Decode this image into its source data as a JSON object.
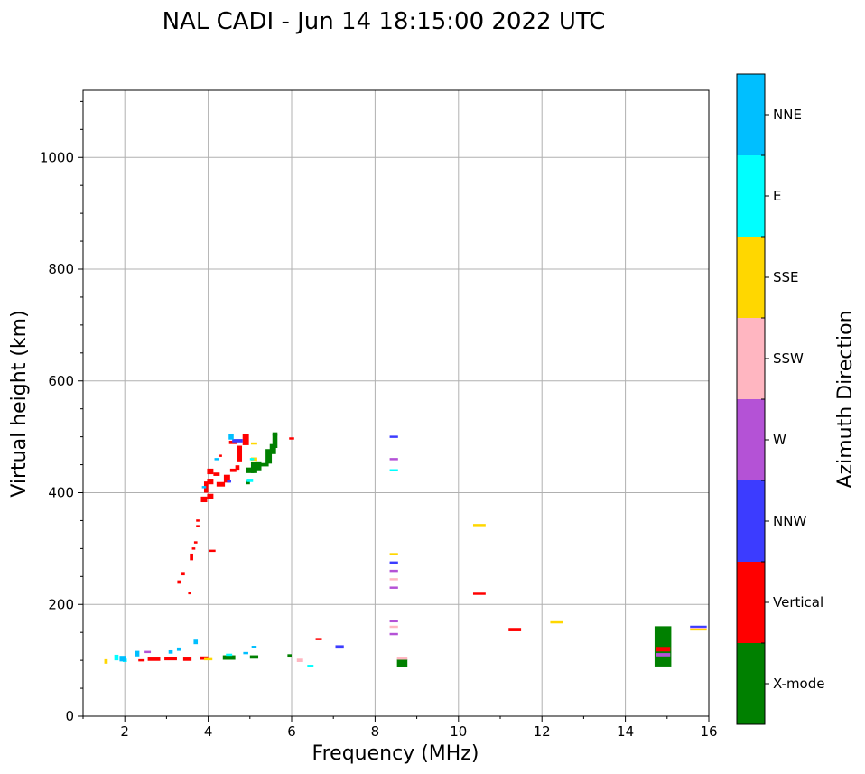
{
  "chart_data": {
    "type": "scatter",
    "title": "NAL CADI - Jun 14 18:15:00 2022 UTC",
    "xlabel": "Frequency (MHz)",
    "ylabel": "Virtual height (km)",
    "xlim": [
      1,
      16
    ],
    "ylim": [
      0,
      1120
    ],
    "xticks": [
      2,
      4,
      6,
      8,
      10,
      12,
      14,
      16
    ],
    "yticks": [
      0,
      200,
      400,
      600,
      800,
      1000
    ],
    "grid": true,
    "colorbar": {
      "label": "Azimuth Direction",
      "categories": [
        {
          "name": "X-mode",
          "color": "#008000"
        },
        {
          "name": "Vertical",
          "color": "#ff0000"
        },
        {
          "name": "NNW",
          "color": "#3c3cff"
        },
        {
          "name": "W",
          "color": "#b452d6"
        },
        {
          "name": "SSW",
          "color": "#ffb6c1"
        },
        {
          "name": "SSE",
          "color": "#ffd700"
        },
        {
          "name": "E",
          "color": "#00ffff"
        },
        {
          "name": "NNE",
          "color": "#00bfff"
        }
      ]
    },
    "series": [
      {
        "name": "X-mode",
        "points": [
          [
            4.5,
            105,
            0.3,
            8
          ],
          [
            5.1,
            106,
            0.2,
            6
          ],
          [
            5.95,
            108,
            0.1,
            6
          ],
          [
            8.65,
            95,
            0.25,
            14
          ],
          [
            5.0,
            440,
            0.2,
            10
          ],
          [
            5.1,
            445,
            0.15,
            20
          ],
          [
            5.2,
            448,
            0.15,
            16
          ],
          [
            5.35,
            450,
            0.2,
            6
          ],
          [
            5.45,
            465,
            0.15,
            26
          ],
          [
            5.55,
            478,
            0.15,
            18
          ],
          [
            5.6,
            492,
            0.12,
            24
          ],
          [
            5.6,
            505,
            0.12,
            6
          ],
          [
            4.95,
            418,
            0.1,
            6
          ],
          [
            14.9,
            125,
            0.4,
            72
          ]
        ]
      },
      {
        "name": "Vertical",
        "points": [
          [
            2.7,
            102,
            0.3,
            6
          ],
          [
            3.1,
            103,
            0.3,
            6
          ],
          [
            3.5,
            102,
            0.2,
            6
          ],
          [
            3.9,
            104,
            0.2,
            6
          ],
          [
            2.4,
            100,
            0.15,
            4
          ],
          [
            3.3,
            240,
            0.08,
            6
          ],
          [
            3.4,
            255,
            0.08,
            6
          ],
          [
            3.55,
            220,
            0.06,
            4
          ],
          [
            3.6,
            285,
            0.08,
            12
          ],
          [
            3.65,
            300,
            0.08,
            4
          ],
          [
            3.7,
            311,
            0.08,
            4
          ],
          [
            3.75,
            340,
            0.08,
            4
          ],
          [
            3.75,
            350,
            0.08,
            4
          ],
          [
            3.9,
            388,
            0.15,
            10
          ],
          [
            4.05,
            393,
            0.15,
            10
          ],
          [
            3.95,
            410,
            0.1,
            20
          ],
          [
            4.05,
            420,
            0.15,
            10
          ],
          [
            4.05,
            438,
            0.15,
            10
          ],
          [
            4.2,
            433,
            0.15,
            6
          ],
          [
            4.3,
            415,
            0.2,
            8
          ],
          [
            4.45,
            425,
            0.15,
            14
          ],
          [
            4.6,
            440,
            0.15,
            6
          ],
          [
            4.7,
            445,
            0.1,
            8
          ],
          [
            4.75,
            470,
            0.12,
            28
          ],
          [
            4.6,
            490,
            0.2,
            6
          ],
          [
            4.9,
            495,
            0.15,
            20
          ],
          [
            4.3,
            466,
            0.06,
            4
          ],
          [
            4.1,
            296,
            0.15,
            4
          ],
          [
            6.0,
            497,
            0.12,
            4
          ],
          [
            6.65,
            138,
            0.15,
            4
          ],
          [
            10.5,
            219,
            0.3,
            4
          ],
          [
            11.35,
            155,
            0.3,
            6
          ],
          [
            14.9,
            120,
            0.35,
            8
          ]
        ]
      },
      {
        "name": "NNW",
        "points": [
          [
            8.45,
            500,
            0.2,
            4
          ],
          [
            8.45,
            275,
            0.2,
            4
          ],
          [
            7.15,
            124,
            0.2,
            6
          ],
          [
            4.7,
            493,
            0.25,
            6
          ],
          [
            4.5,
            420,
            0.1,
            4
          ],
          [
            15.75,
            160,
            0.4,
            4
          ]
        ]
      },
      {
        "name": "W",
        "points": [
          [
            8.45,
            460,
            0.2,
            4
          ],
          [
            8.45,
            260,
            0.2,
            4
          ],
          [
            8.45,
            230,
            0.2,
            4
          ],
          [
            8.45,
            170,
            0.2,
            4
          ],
          [
            8.45,
            147,
            0.2,
            4
          ],
          [
            2.55,
            115,
            0.15,
            4
          ],
          [
            14.9,
            110,
            0.35,
            6
          ]
        ]
      },
      {
        "name": "SSW",
        "points": [
          [
            8.45,
            245,
            0.2,
            4
          ],
          [
            8.45,
            160,
            0.2,
            4
          ],
          [
            6.2,
            100,
            0.15,
            6
          ],
          [
            8.65,
            103,
            0.25,
            4
          ],
          [
            15.75,
            157,
            0.4,
            3
          ]
        ]
      },
      {
        "name": "SSE",
        "points": [
          [
            8.45,
            290,
            0.2,
            4
          ],
          [
            10.5,
            342,
            0.3,
            4
          ],
          [
            12.35,
            168,
            0.3,
            4
          ],
          [
            1.55,
            98,
            0.08,
            8
          ],
          [
            4.0,
            102,
            0.2,
            4
          ],
          [
            5.1,
            488,
            0.15,
            4
          ],
          [
            5.1,
            460,
            0.15,
            6
          ],
          [
            15.75,
            155,
            0.4,
            3
          ]
        ]
      },
      {
        "name": "E",
        "points": [
          [
            8.45,
            440,
            0.2,
            4
          ],
          [
            6.45,
            90,
            0.15,
            4
          ],
          [
            1.8,
            105,
            0.1,
            10
          ],
          [
            2.0,
            100,
            0.1,
            6
          ],
          [
            5.0,
            422,
            0.15,
            6
          ],
          [
            5.05,
            460,
            0.1,
            4
          ],
          [
            4.5,
            110,
            0.15,
            4
          ]
        ]
      },
      {
        "name": "NNE",
        "points": [
          [
            3.7,
            133,
            0.1,
            8
          ],
          [
            4.55,
            500,
            0.12,
            10
          ],
          [
            4.2,
            460,
            0.1,
            4
          ],
          [
            1.95,
            103,
            0.15,
            10
          ],
          [
            3.3,
            120,
            0.1,
            6
          ],
          [
            3.1,
            115,
            0.1,
            6
          ],
          [
            2.3,
            112,
            0.1,
            10
          ],
          [
            4.9,
            113,
            0.12,
            4
          ],
          [
            5.1,
            124,
            0.12,
            4
          ],
          [
            3.9,
            410,
            0.1,
            4
          ]
        ]
      }
    ]
  }
}
